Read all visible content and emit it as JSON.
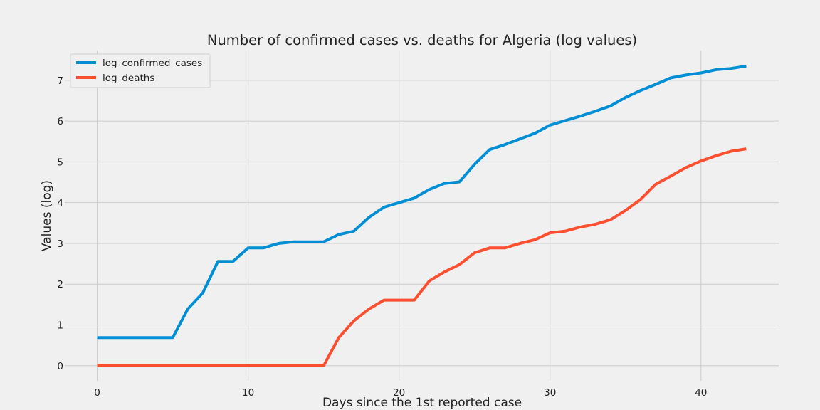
{
  "chart_data": {
    "type": "line",
    "title": "Number of confirmed cases vs. deaths for Algeria (log values)",
    "xlabel": "Days since the 1st reported case",
    "ylabel": "Values (log)",
    "xlim": [
      -2.15,
      45.15
    ],
    "ylim": [
      -0.37,
      7.73
    ],
    "x_ticks": [
      0,
      10,
      20,
      30,
      40
    ],
    "y_ticks": [
      0,
      1,
      2,
      3,
      4,
      5,
      6,
      7
    ],
    "grid": true,
    "legend_position": "top-left",
    "x": [
      0,
      1,
      2,
      3,
      4,
      5,
      6,
      7,
      8,
      9,
      10,
      11,
      12,
      13,
      14,
      15,
      16,
      17,
      18,
      19,
      20,
      21,
      22,
      23,
      24,
      25,
      26,
      27,
      28,
      29,
      30,
      31,
      32,
      33,
      34,
      35,
      36,
      37,
      38,
      39,
      40,
      41,
      42,
      43
    ],
    "series": [
      {
        "name": "log_confirmed_cases",
        "color": "#008fd5",
        "values": [
          0.69,
          0.69,
          0.69,
          0.69,
          0.69,
          0.69,
          1.39,
          1.79,
          2.56,
          2.56,
          2.89,
          2.89,
          3.0,
          3.04,
          3.04,
          3.04,
          3.22,
          3.3,
          3.64,
          3.89,
          4.0,
          4.11,
          4.32,
          4.47,
          4.51,
          4.94,
          5.3,
          5.42,
          5.56,
          5.7,
          5.9,
          6.01,
          6.12,
          6.24,
          6.37,
          6.58,
          6.75,
          6.9,
          7.06,
          7.13,
          7.18,
          7.26,
          7.29,
          7.35
        ]
      },
      {
        "name": "log_deaths",
        "color": "#fc4f30",
        "values": [
          0,
          0,
          0,
          0,
          0,
          0,
          0,
          0,
          0,
          0,
          0,
          0,
          0,
          0,
          0,
          0,
          0.69,
          1.1,
          1.39,
          1.61,
          1.61,
          1.61,
          2.08,
          2.3,
          2.48,
          2.77,
          2.89,
          2.89,
          3.0,
          3.09,
          3.26,
          3.3,
          3.4,
          3.47,
          3.58,
          3.81,
          4.08,
          4.45,
          4.65,
          4.86,
          5.02,
          5.15,
          5.26,
          5.32
        ]
      }
    ]
  }
}
